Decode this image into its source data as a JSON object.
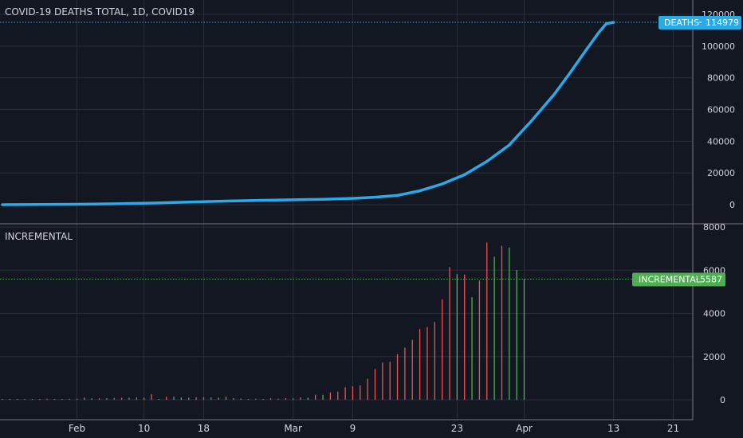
{
  "colors": {
    "background": "#131722",
    "grid": "#2a2e39",
    "axis_text": "#d1d4dc",
    "deaths_line": "#2aaae8",
    "bar_up": "#4caf50",
    "bar_down": "#ef5350",
    "incremental_label": "#4caf50"
  },
  "chart_data": [
    {
      "type": "line",
      "title": "COVID-19 DEATHS TOTAL, 1D, COVID19",
      "x_start": "2020-01-22",
      "x_end": "2020-04-13",
      "ylim": [
        -5000,
        120000
      ],
      "y_ticks": [
        "120000",
        "100000",
        "80000",
        "60000",
        "40000",
        "20000",
        "0"
      ],
      "y_tick_values": [
        120000,
        100000,
        80000,
        60000,
        40000,
        20000,
        0
      ],
      "series": [
        {
          "name": "DEATHS",
          "color": "#2aaae8",
          "values": [
            {
              "date": "2020-01-22",
              "value": 17
            },
            {
              "date": "2020-01-27",
              "value": 82
            },
            {
              "date": "2020-02-01",
              "value": 259
            },
            {
              "date": "2020-02-06",
              "value": 564
            },
            {
              "date": "2020-02-11",
              "value": 1018
            },
            {
              "date": "2020-02-16",
              "value": 1666
            },
            {
              "date": "2020-02-21",
              "value": 2247
            },
            {
              "date": "2020-02-26",
              "value": 2763
            },
            {
              "date": "2020-03-01",
              "value": 3085
            },
            {
              "date": "2020-03-05",
              "value": 3348
            },
            {
              "date": "2020-03-09",
              "value": 3988
            },
            {
              "date": "2020-03-12",
              "value": 4720
            },
            {
              "date": "2020-03-15",
              "value": 5819
            },
            {
              "date": "2020-03-18",
              "value": 8733
            },
            {
              "date": "2020-03-21",
              "value": 13050
            },
            {
              "date": "2020-03-24",
              "value": 18891
            },
            {
              "date": "2020-03-27",
              "value": 27324
            },
            {
              "date": "2020-03-30",
              "value": 37582
            },
            {
              "date": "2020-04-02",
              "value": 52983
            },
            {
              "date": "2020-04-05",
              "value": 69374
            },
            {
              "date": "2020-04-07",
              "value": 82074
            },
            {
              "date": "2020-04-09",
              "value": 95455
            },
            {
              "date": "2020-04-11",
              "value": 108503
            },
            {
              "date": "2020-04-12",
              "value": 114090
            },
            {
              "date": "2020-04-13",
              "value": 114979
            }
          ]
        }
      ],
      "last_value_label": {
        "name": "DEATHS",
        "value": "114979"
      }
    },
    {
      "type": "bar",
      "title": "INCREMENTAL",
      "x_start": "2020-01-22",
      "ylim": [
        -600,
        8000
      ],
      "y_ticks": [
        "8000",
        "6000",
        "4000",
        "2000",
        "0"
      ],
      "y_tick_values": [
        8000,
        6000,
        4000,
        2000,
        0
      ],
      "series": [
        {
          "name": "INCREMENTAL",
          "values": [
            0,
            0,
            8,
            16,
            14,
            26,
            49,
            2,
            38,
            42,
            46,
            103,
            64,
            66,
            73,
            86,
            89,
            97,
            108,
            97,
            254,
            13,
            143,
            142,
            106,
            98,
            115,
            118,
            109,
            97,
            150,
            71,
            52,
            29,
            44,
            37,
            68,
            45,
            73,
            60,
            112,
            99,
            232,
            229,
            341,
            381,
            579,
            626,
            665,
            970,
            1426,
            1716,
            1759,
            2112,
            2417,
            2778,
            3273,
            3373,
            3606,
            4641,
            6145,
            5816,
            5799,
            4753,
            5521,
            7288,
            6621,
            7133,
            7052,
            6002,
            5587
          ],
          "directions": [
            "down",
            "down",
            "down",
            "down",
            "down",
            "down",
            "down",
            "up",
            "down",
            "down",
            "down",
            "down",
            "up",
            "down",
            "down",
            "down",
            "down",
            "down",
            "down",
            "up",
            "down",
            "up",
            "down",
            "up",
            "up",
            "up",
            "down",
            "down",
            "up",
            "up",
            "down",
            "up",
            "up",
            "up",
            "down",
            "up",
            "down",
            "up",
            "down",
            "up",
            "down",
            "up",
            "down",
            "up",
            "down",
            "down",
            "down",
            "down",
            "down",
            "down",
            "down",
            "down",
            "down",
            "down",
            "down",
            "down",
            "down",
            "down",
            "down",
            "down",
            "down",
            "up",
            "down",
            "up",
            "down",
            "down",
            "up",
            "down",
            "up",
            "up",
            "up"
          ]
        }
      ],
      "last_value_label": {
        "name": "INCREMENTAL",
        "value": "5587"
      }
    }
  ],
  "x_axis": {
    "ticks": [
      {
        "label": "Feb",
        "date": "2020-02-01"
      },
      {
        "label": "10",
        "date": "2020-02-10"
      },
      {
        "label": "18",
        "date": "2020-02-18"
      },
      {
        "label": "Mar",
        "date": "2020-03-01"
      },
      {
        "label": "9",
        "date": "2020-03-09"
      },
      {
        "label": "23",
        "date": "2020-03-23"
      },
      {
        "label": "Apr",
        "date": "2020-04-01"
      },
      {
        "label": "13",
        "date": "2020-04-13"
      },
      {
        "label": "21",
        "date": "2020-04-21"
      }
    ]
  }
}
